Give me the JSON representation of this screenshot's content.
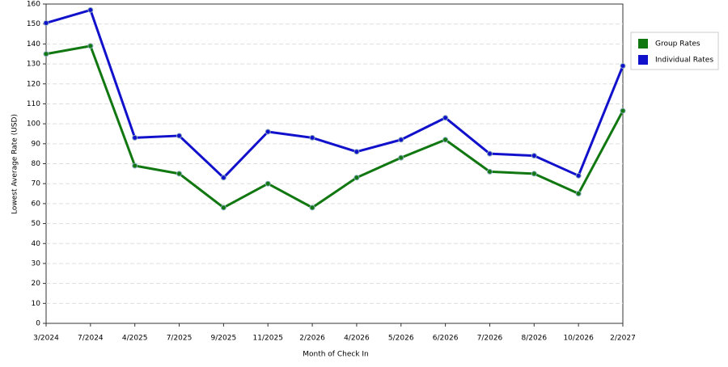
{
  "chart_data": {
    "type": "line",
    "x_label": "Month of Check In",
    "y_label": "Lowest Average Rate (USD)",
    "categories": [
      "3/2024",
      "7/2024",
      "4/2025",
      "7/2025",
      "9/2025",
      "11/2025",
      "2/2026",
      "4/2026",
      "5/2026",
      "6/2026",
      "7/2026",
      "8/2026",
      "10/2026",
      "2/2027"
    ],
    "series": [
      {
        "name": "Group Rates",
        "color": "#117711",
        "values": [
          135,
          139,
          79,
          75,
          58,
          70,
          58,
          73,
          83,
          92,
          76,
          75,
          65,
          106.5
        ]
      },
      {
        "name": "Individual Rates",
        "color": "#1111cc",
        "values": [
          150.5,
          157,
          93,
          94,
          73,
          96,
          93,
          86,
          92,
          103,
          85,
          84,
          74,
          129
        ]
      }
    ],
    "ylim": [
      0,
      160
    ],
    "yticks": [
      0,
      10,
      20,
      30,
      40,
      50,
      60,
      70,
      80,
      90,
      100,
      110,
      120,
      130,
      140,
      150,
      160
    ],
    "grid": true
  }
}
